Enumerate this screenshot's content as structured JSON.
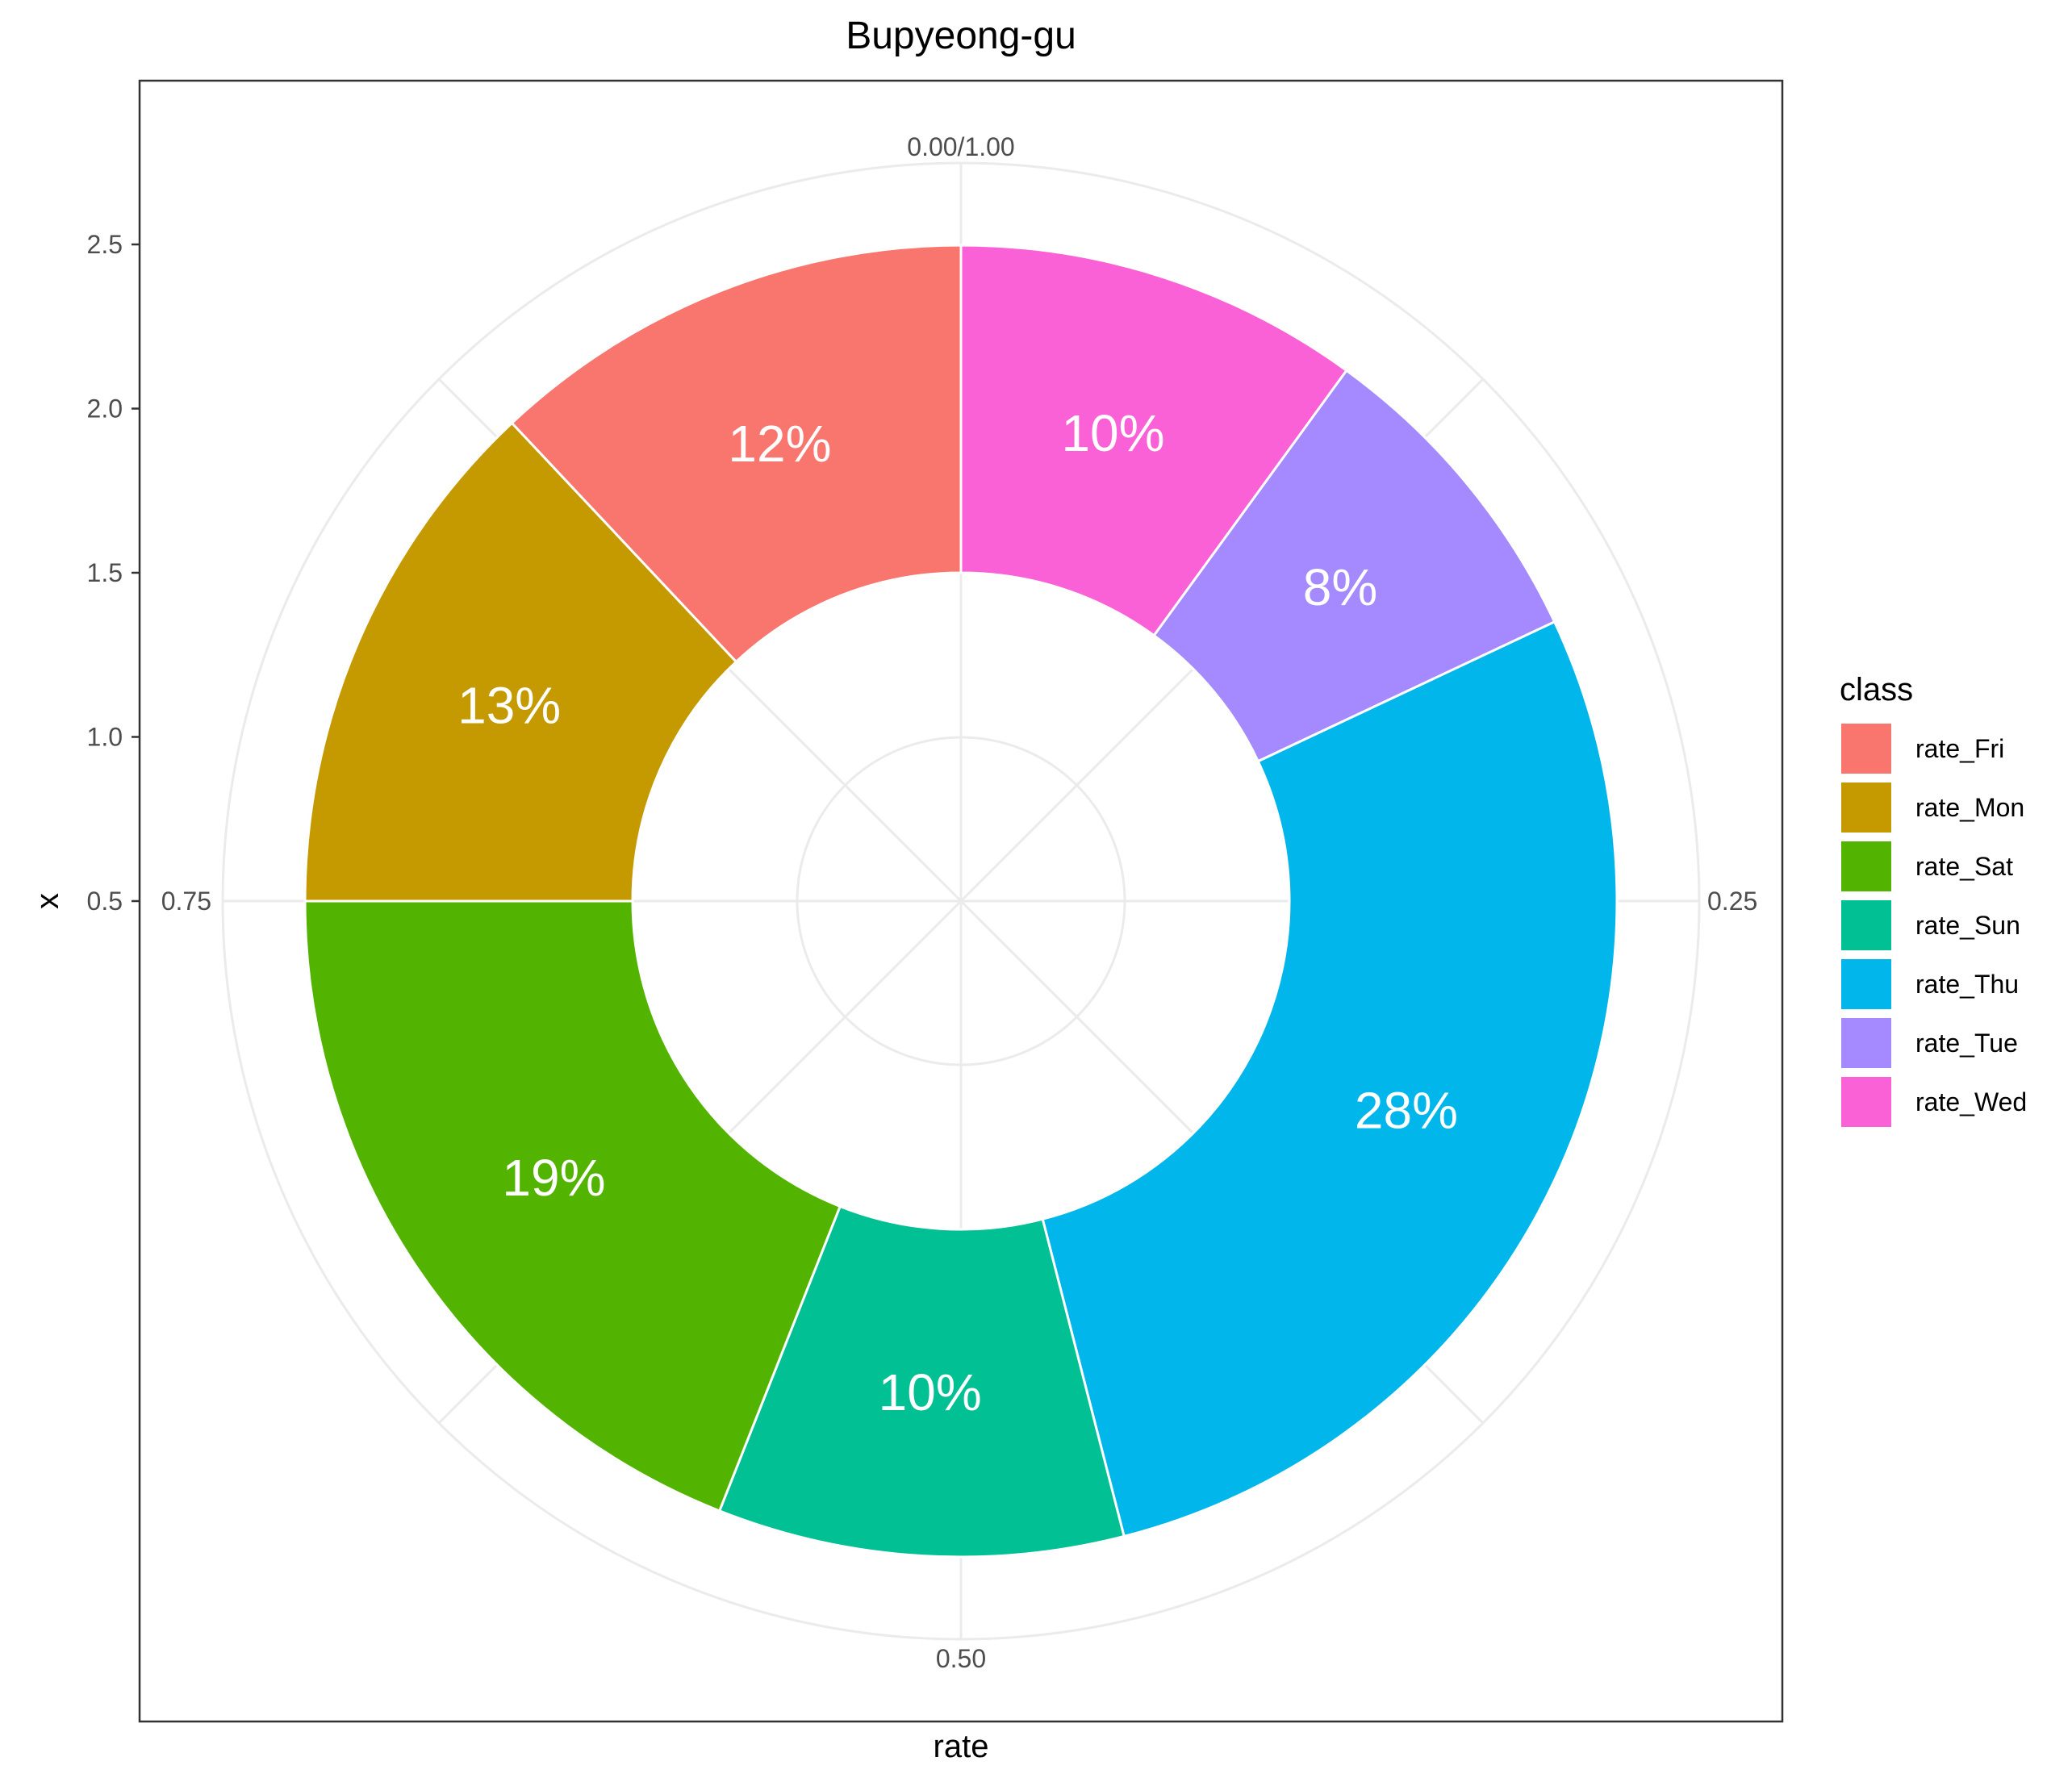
{
  "chart_data": {
    "type": "pie",
    "subtype": "donut",
    "title": "Bupyeong-gu",
    "xlabel": "rate",
    "ylabel": "x",
    "x_ticks": [
      "0.5",
      "1.0",
      "1.5",
      "2.0",
      "2.5"
    ],
    "x_range": [
      0.5,
      2.5
    ],
    "theta_ticks": [
      "0.00/1.00",
      "0.25",
      "0.50",
      "0.75"
    ],
    "grid": true,
    "legend": {
      "title": "class",
      "placement": "right",
      "entries": [
        "rate_Fri",
        "rate_Mon",
        "rate_Sat",
        "rate_Sun",
        "rate_Thu",
        "rate_Tue",
        "rate_Wed"
      ]
    },
    "slices": [
      {
        "class": "rate_Wed",
        "value": 0.1,
        "label": "10%",
        "color": "#FB61D7"
      },
      {
        "class": "rate_Tue",
        "value": 0.08,
        "label": "8%",
        "color": "#A58AFF"
      },
      {
        "class": "rate_Thu",
        "value": 0.28,
        "label": "28%",
        "color": "#00B6EB"
      },
      {
        "class": "rate_Sun",
        "value": 0.1,
        "label": "10%",
        "color": "#00C094"
      },
      {
        "class": "rate_Sat",
        "value": 0.19,
        "label": "19%",
        "color": "#53B400"
      },
      {
        "class": "rate_Mon",
        "value": 0.13,
        "label": "13%",
        "color": "#C49A00"
      },
      {
        "class": "rate_Fri",
        "value": 0.12,
        "label": "12%",
        "color": "#F8766D"
      }
    ],
    "colors": {
      "rate_Fri": "#F8766D",
      "rate_Mon": "#C49A00",
      "rate_Sat": "#53B400",
      "rate_Sun": "#00C094",
      "rate_Thu": "#00B6EB",
      "rate_Tue": "#A58AFF",
      "rate_Wed": "#FB61D7"
    }
  }
}
